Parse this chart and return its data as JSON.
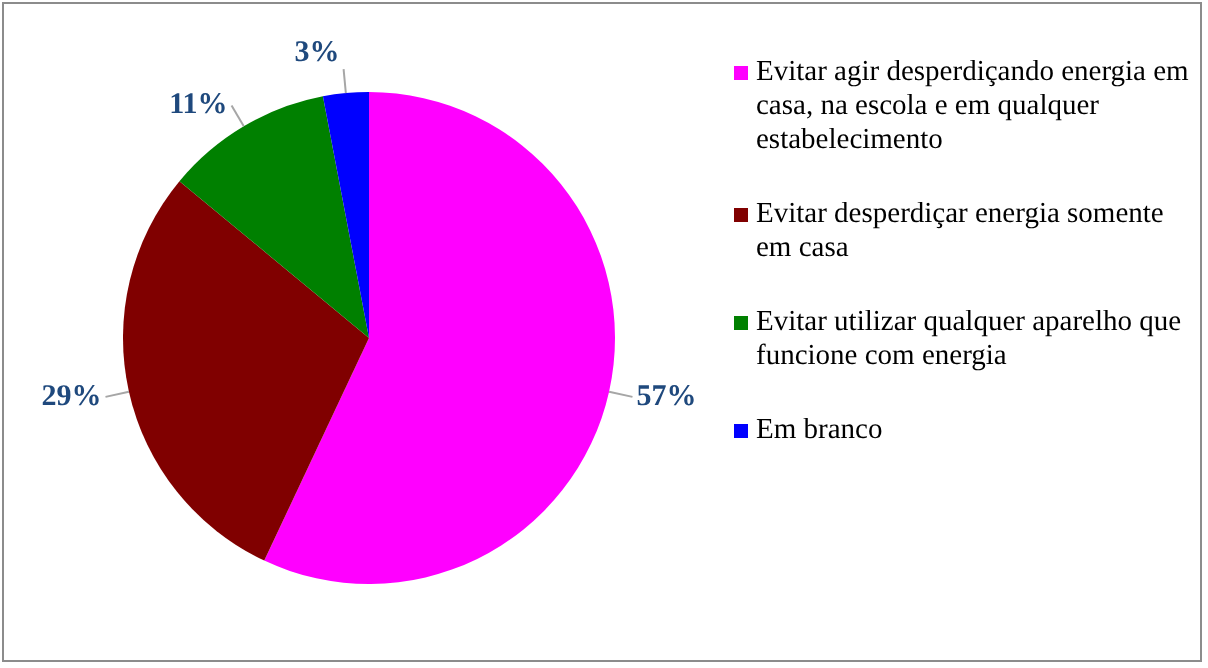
{
  "chart_data": {
    "type": "pie",
    "categories": [
      "Evitar agir desperdiçando energia em casa, na escola e em qualquer estabelecimento",
      "Evitar desperdiçar energia somente em casa",
      "Evitar utilizar qualquer aparelho que funcione com energia",
      "Em branco"
    ],
    "values": [
      57,
      29,
      11,
      3
    ],
    "colors": [
      "#ff00ff",
      "#800000",
      "#008000",
      "#0000ff"
    ],
    "value_labels": [
      "57%",
      "29%",
      "11%",
      "3%"
    ],
    "legend": "right"
  }
}
